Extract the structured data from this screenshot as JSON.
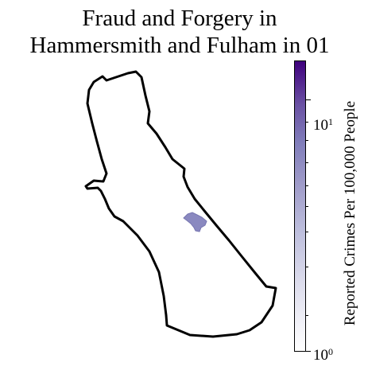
{
  "title": {
    "line1": "Fraud and Forgery in",
    "line2": "Hammersmith and Fulham in 01"
  },
  "colorbar": {
    "label": "Reported Crimes Per 100,000 People",
    "scale": "log",
    "colormap": [
      "#ffffff",
      "#bcbddc",
      "#807dba",
      "#3f007d"
    ],
    "ticks": [
      {
        "base": "10",
        "exp": "1",
        "value": 10
      },
      {
        "base": "10",
        "exp": "0",
        "value": 1
      }
    ],
    "range": [
      1,
      15
    ]
  },
  "map": {
    "borough": "Hammersmith and Fulham",
    "border_color": "#000000",
    "highlighted_area_color": "#8a89c0"
  }
}
